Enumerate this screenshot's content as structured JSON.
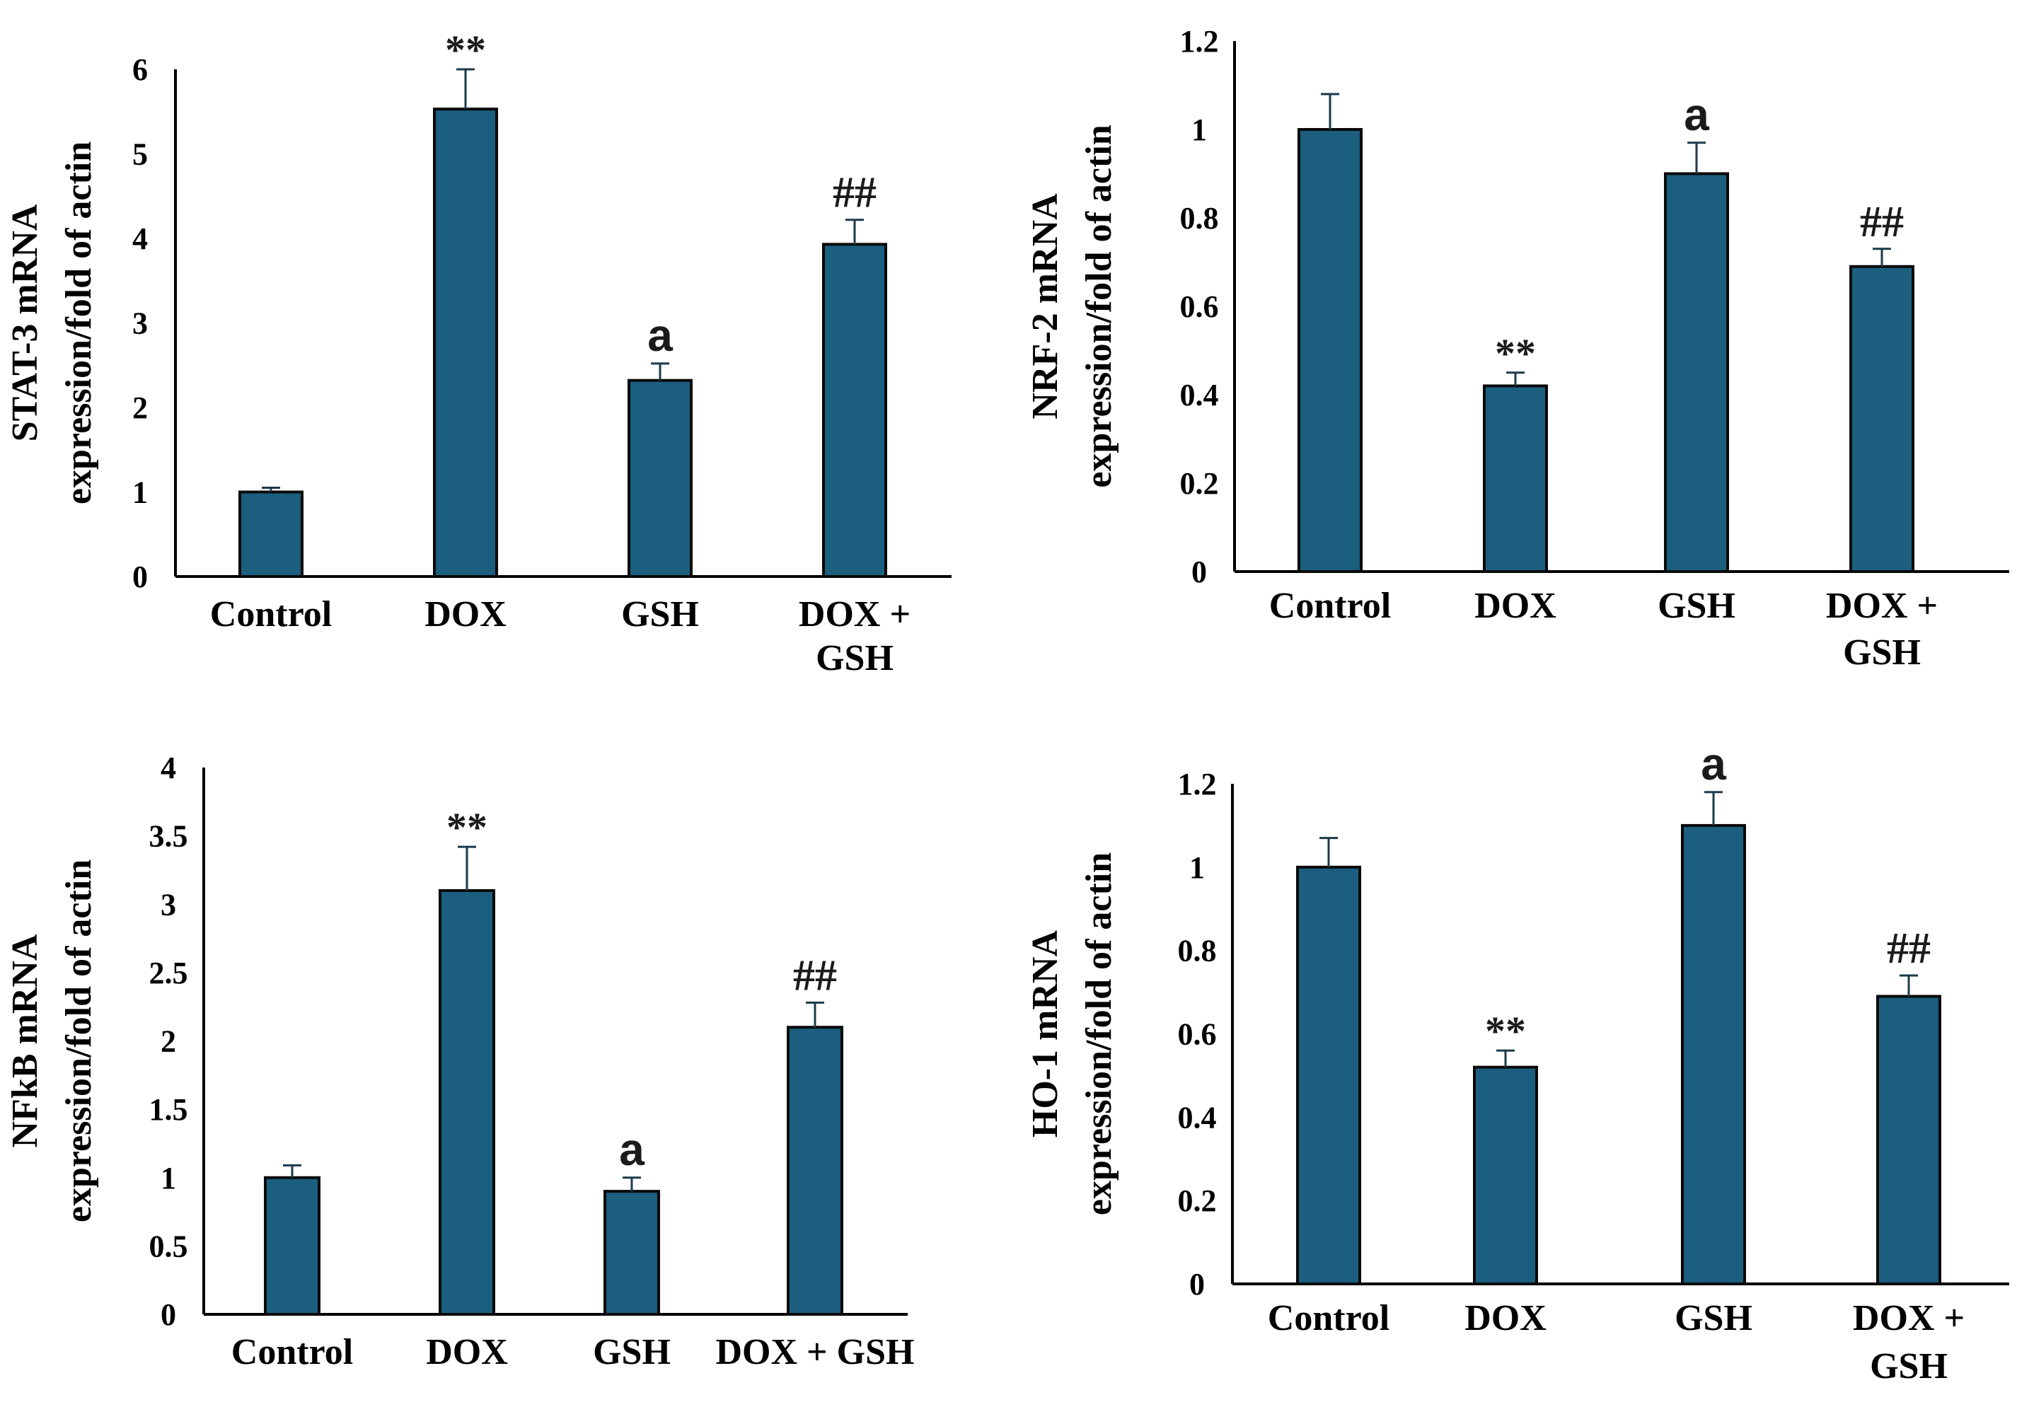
{
  "colors": {
    "bar_fill": "#1b5e7e",
    "bar_stroke": "#0a0a0a",
    "axis": "#000000",
    "error_bar": "#1b3a4b"
  },
  "chart_data": [
    {
      "type": "bar",
      "ylabel": [
        "STAT-3 mRNA",
        "expression/fold of actin"
      ],
      "categories": [
        [
          "Control"
        ],
        [
          "DOX"
        ],
        [
          "GSH"
        ],
        [
          "DOX +",
          "GSH"
        ]
      ],
      "values": [
        1.0,
        5.53,
        2.32,
        3.93
      ],
      "errors": [
        0.05,
        0.47,
        0.2,
        0.29
      ],
      "annotations": [
        "",
        "**",
        "a",
        "##"
      ],
      "ylim": [
        0,
        6
      ],
      "yticks": [
        "0",
        "1",
        "2",
        "3",
        "4",
        "5",
        "6"
      ],
      "grid": false
    },
    {
      "type": "bar",
      "ylabel": [
        "NRF-2 mRNA",
        "expression/fold of actin"
      ],
      "categories": [
        [
          "Control"
        ],
        [
          "DOX"
        ],
        [
          "GSH"
        ],
        [
          "DOX +",
          "GSH"
        ]
      ],
      "values": [
        1.0,
        0.42,
        0.9,
        0.69
      ],
      "errors": [
        0.08,
        0.03,
        0.07,
        0.04
      ],
      "annotations": [
        "",
        "**",
        "a",
        "##"
      ],
      "ylim": [
        0,
        1.2
      ],
      "yticks": [
        "0",
        "0.2",
        "0.4",
        "0.6",
        "0.8",
        "1",
        "1.2"
      ],
      "grid": false
    },
    {
      "type": "bar",
      "ylabel": [
        "NFkB mRNA",
        "expression/fold of actin"
      ],
      "categories": [
        [
          "Control"
        ],
        [
          "DOX"
        ],
        [
          "GSH"
        ],
        [
          "DOX + GSH"
        ]
      ],
      "values": [
        1.0,
        3.1,
        0.9,
        2.1
      ],
      "errors": [
        0.09,
        0.32,
        0.1,
        0.18
      ],
      "annotations": [
        "",
        "**",
        "a",
        "##"
      ],
      "ylim": [
        0,
        4
      ],
      "yticks": [
        "0",
        "0.5",
        "1",
        "1.5",
        "2",
        "2.5",
        "3",
        "3.5",
        "4"
      ],
      "grid": false
    },
    {
      "type": "bar",
      "ylabel": [
        "HO-1 mRNA",
        "expression/fold of actin"
      ],
      "categories": [
        [
          "Control"
        ],
        [
          "DOX"
        ],
        [
          "GSH"
        ],
        [
          "DOX +",
          "GSH"
        ]
      ],
      "values": [
        1.0,
        0.52,
        1.1,
        0.69
      ],
      "errors": [
        0.07,
        0.04,
        0.08,
        0.05
      ],
      "annotations": [
        "",
        "**",
        "a",
        "##"
      ],
      "ylim": [
        0,
        1.2
      ],
      "yticks": [
        "0",
        "0.2",
        "0.4",
        "0.6",
        "0.8",
        "1",
        "1.2"
      ],
      "grid": false
    }
  ]
}
